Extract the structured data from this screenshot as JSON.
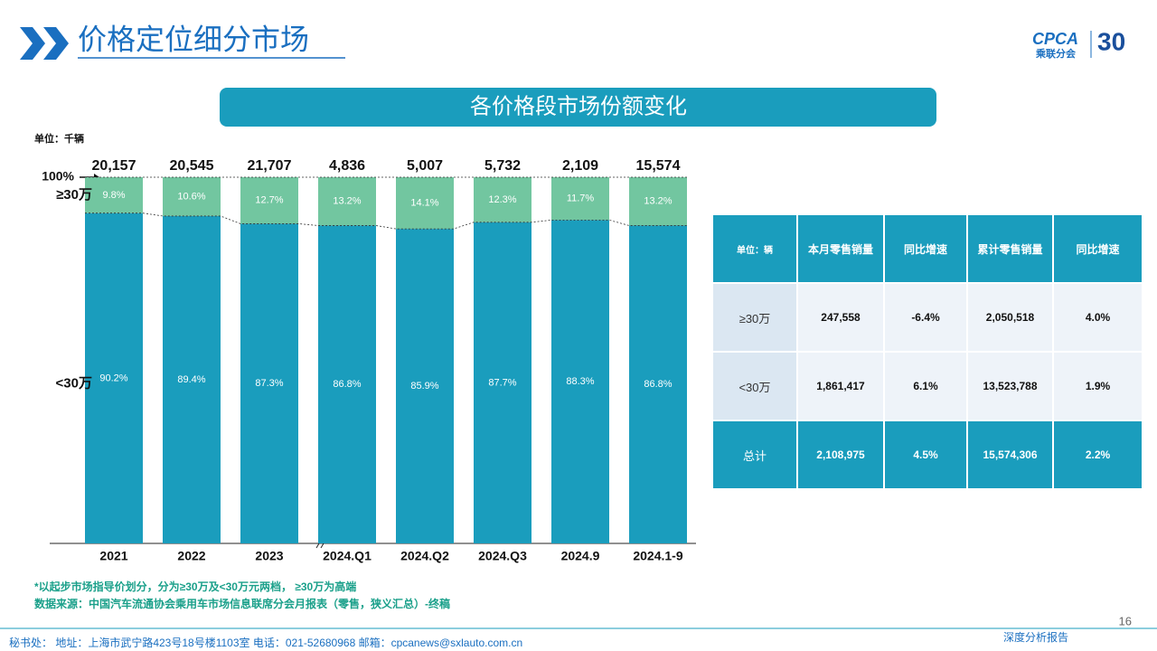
{
  "header": {
    "title": "价格定位细分市场",
    "logo": {
      "name": "CPCA",
      "subname": "乘联分会",
      "anniversary": "30"
    }
  },
  "chart_data": {
    "type": "bar",
    "stacked": true,
    "title": "各价格段市场份额变化",
    "unit": "单位：千辆",
    "categories": [
      "2021",
      "2022",
      "2023",
      "2024.Q1",
      "2024.Q2",
      "2024.Q3",
      "2024.9",
      "2024.1-9"
    ],
    "totals": {
      "values": [
        20157,
        20545,
        21707,
        4836,
        5007,
        5732,
        2109,
        15574
      ],
      "value_labels": [
        "20,157",
        "20,545",
        "21,707",
        "4,836",
        "5,007",
        "5,732",
        "2,109",
        "15,574"
      ]
    },
    "series": [
      {
        "name": "<30万",
        "color": "#1a9dbd",
        "values": [
          90.2,
          89.4,
          87.3,
          86.8,
          85.9,
          87.7,
          88.3,
          86.8
        ],
        "value_labels": [
          "90.2%",
          "89.4%",
          "87.3%",
          "86.8%",
          "85.9%",
          "87.7%",
          "88.3%",
          "86.8%"
        ]
      },
      {
        "name": "≥30万",
        "color": "#72c6a0",
        "values": [
          9.8,
          10.6,
          12.7,
          13.2,
          14.1,
          12.3,
          11.7,
          13.2
        ],
        "value_labels": [
          "9.8%",
          "10.6%",
          "12.7%",
          "13.2%",
          "14.1%",
          "12.3%",
          "11.7%",
          "13.2%"
        ]
      }
    ],
    "ylim": [
      0,
      100
    ],
    "yticks": [
      {
        "value": 100,
        "label": "100%"
      }
    ]
  },
  "table": {
    "header": [
      "单位：辆",
      "本月零售销量",
      "同比增速",
      "累计零售销量",
      "同比增速"
    ],
    "rows": [
      [
        "≥30万",
        "247,558",
        "-6.4%",
        "2,050,518",
        "4.0%"
      ],
      [
        "<30万",
        "1,861,417",
        "6.1%",
        "13,523,788",
        "1.9%"
      ],
      [
        "总计",
        "2,108,975",
        "4.5%",
        "15,574,306",
        "2.2%"
      ]
    ]
  },
  "notes": [
    "*以起步市场指导价划分，分为≥30万及<30万元两档， ≥30万为高端",
    "数据来源：中国汽车流通协会乘用车市场信息联席分会月报表（零售，狭义汇总）-终稿"
  ],
  "footer": {
    "contact": "秘书处： 地址：上海市武宁路423号18号楼1103室   电话：021-52680968    邮箱：cpcanews@sxlauto.com.cn",
    "page": "16",
    "tag": "深度分析报告"
  }
}
